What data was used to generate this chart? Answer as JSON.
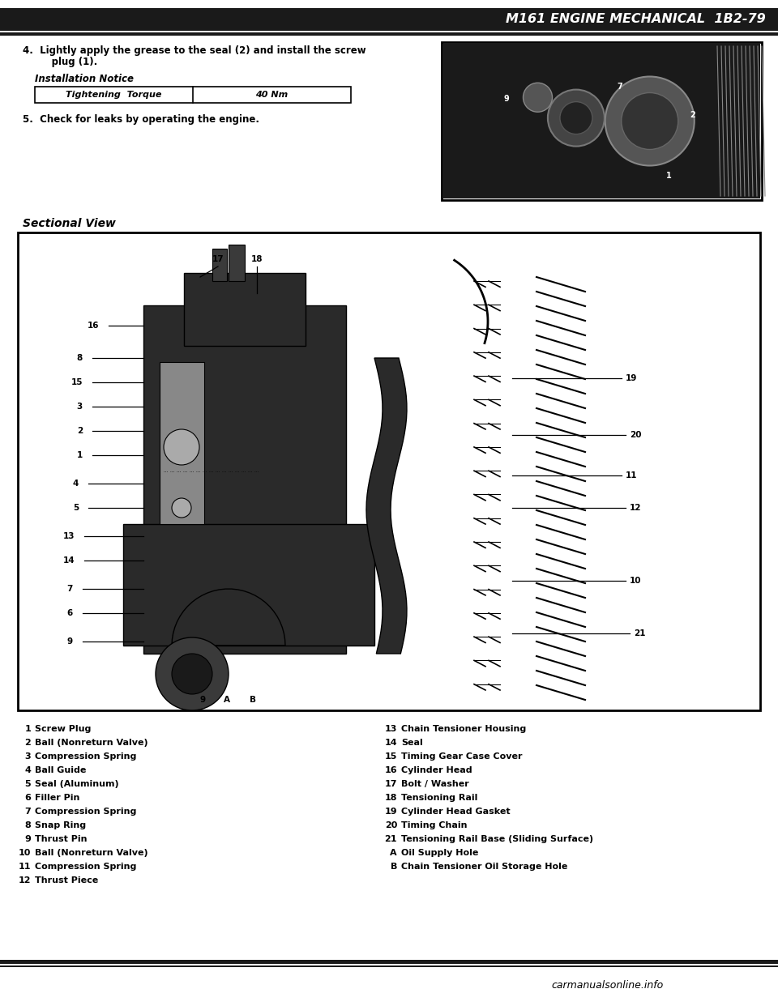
{
  "page_bg": "#ffffff",
  "page_border": "#000000",
  "header_text": "M161 ENGINE MECHANICAL  1B2-79",
  "header_font_size": 11.5,
  "header_bar_color": "#1a1a1a",
  "header_line_color": "#1a1a1a",
  "step4_line1": "4.  Lightly apply the grease to the seal (2) and install the screw",
  "step4_line2": "     plug (1).",
  "installation_notice_label": "Installation Notice",
  "table_col1": "Tightening  Torque",
  "table_col2": "40 Nm",
  "step5_text": "5.  Check for leaks by operating the engine.",
  "section_title": "Sectional View",
  "legend_left": [
    [
      "1",
      "Screw Plug"
    ],
    [
      "2",
      "Ball (Nonreturn Valve)"
    ],
    [
      "3",
      "Compression Spring"
    ],
    [
      "4",
      "Ball Guide"
    ],
    [
      "5",
      "Seal (Aluminum)"
    ],
    [
      "6",
      "Filler Pin"
    ],
    [
      "7",
      "Compression Spring"
    ],
    [
      "8",
      "Snap Ring"
    ],
    [
      "9",
      "Thrust Pin"
    ],
    [
      "10",
      "Ball (Nonreturn Valve)"
    ],
    [
      "11",
      "Compression Spring"
    ],
    [
      "12",
      "Thrust Piece"
    ]
  ],
  "legend_right": [
    [
      "13",
      "Chain Tensioner Housing"
    ],
    [
      "14",
      "Seal"
    ],
    [
      "15",
      "Timing Gear Case Cover"
    ],
    [
      "16",
      "Cylinder Head"
    ],
    [
      "17",
      "Bolt / Washer"
    ],
    [
      "18",
      "Tensioning Rail"
    ],
    [
      "19",
      "Cylinder Head Gasket"
    ],
    [
      "20",
      "Timing Chain"
    ],
    [
      "21",
      "Tensioning Rail Base (Sliding Surface)"
    ],
    [
      "A",
      "Oil Supply Hole"
    ],
    [
      "B",
      "Chain Tensioner Oil Storage Hole"
    ]
  ],
  "footer_url": "carmanualsonline.info"
}
